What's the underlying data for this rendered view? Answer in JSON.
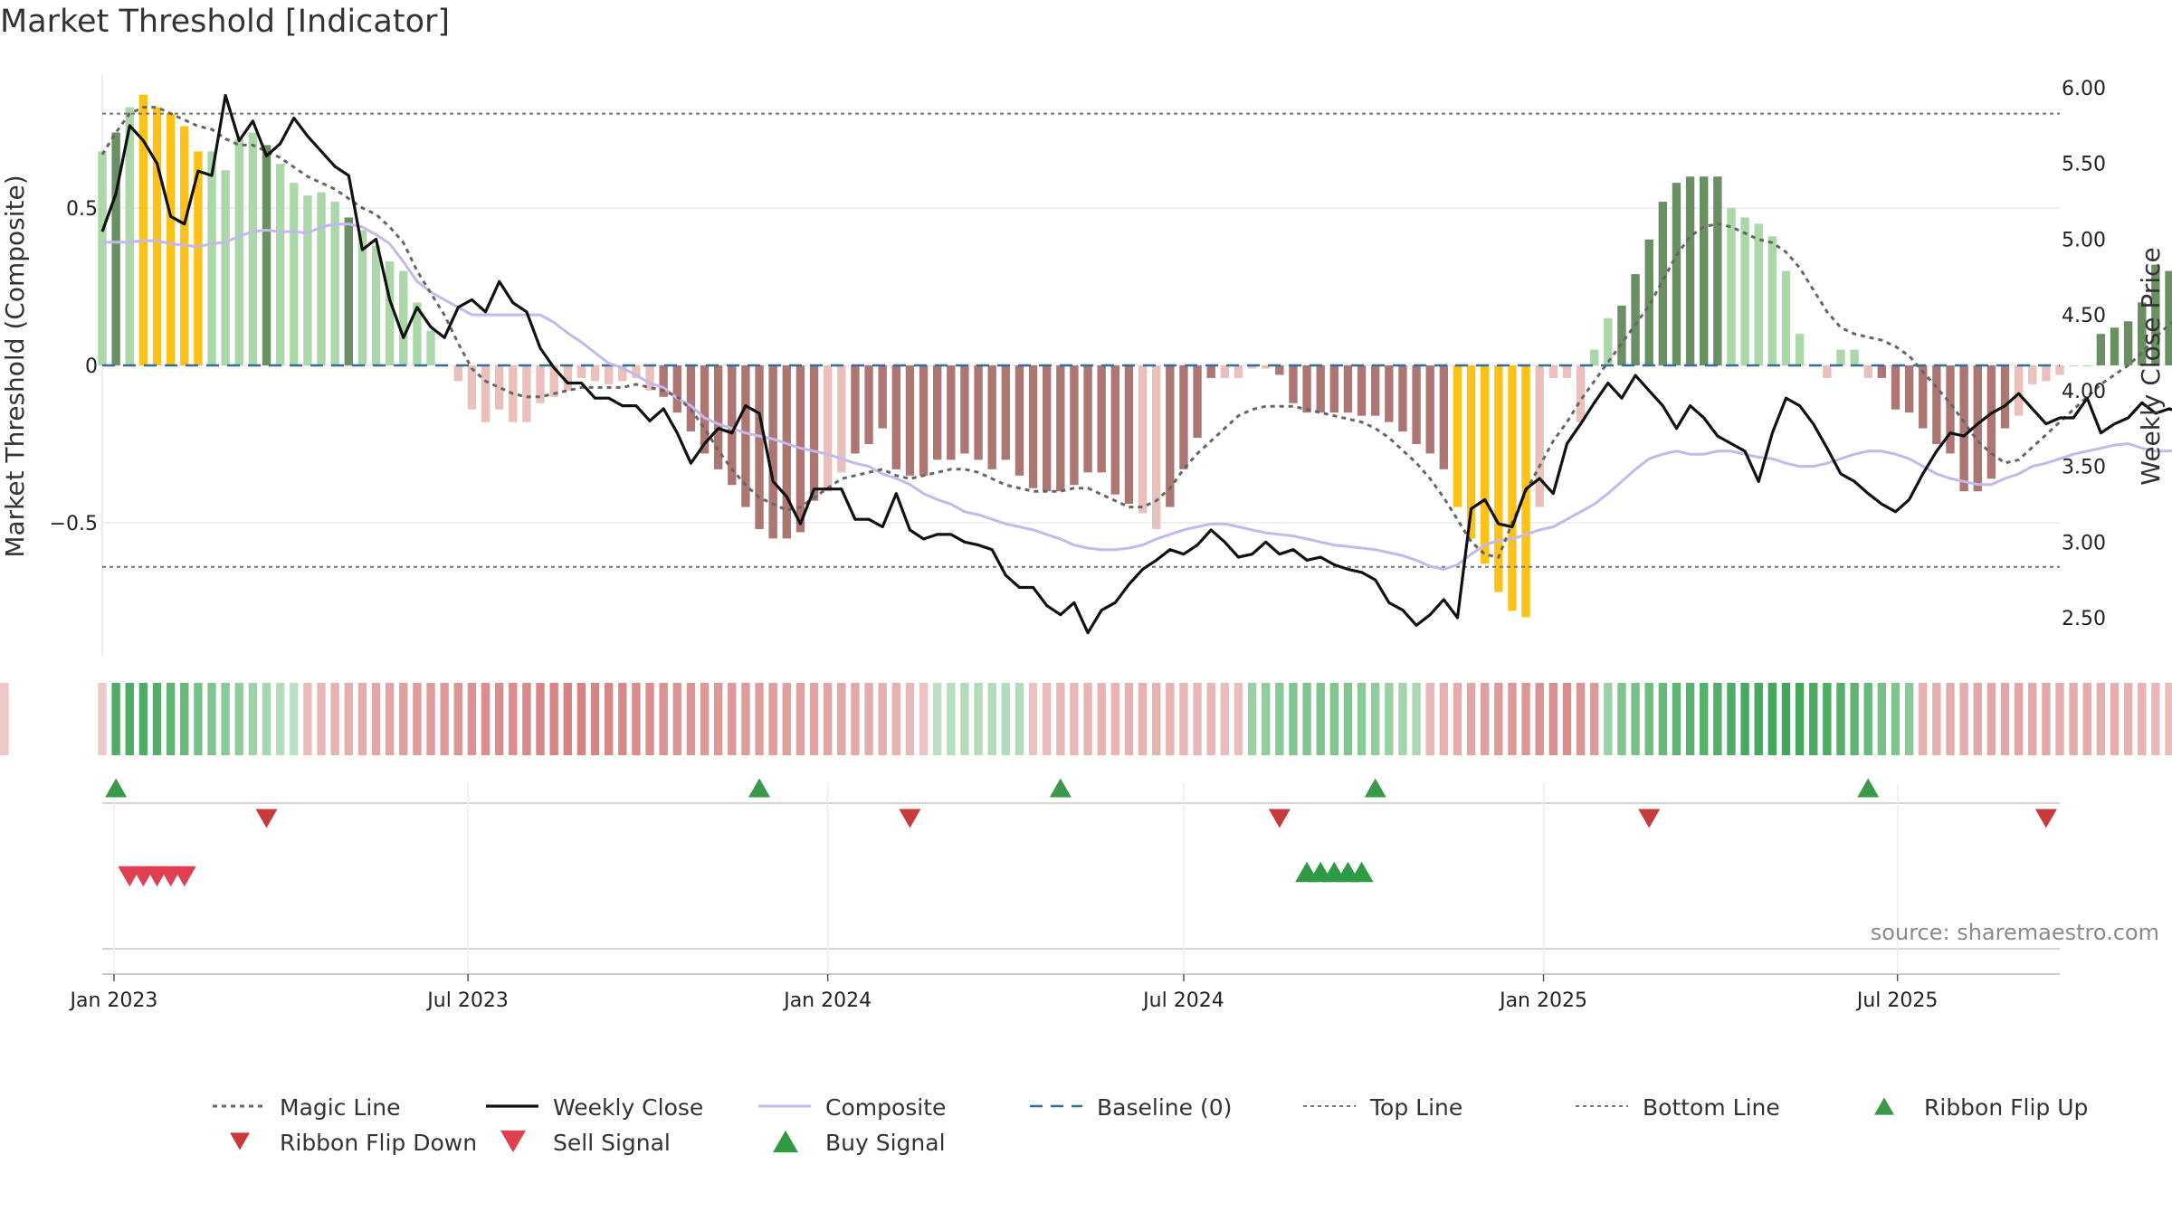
{
  "title": "Market Threshold [Indicator]",
  "source": "source: sharemaestro.com",
  "colors": {
    "strong_pos": "#6a8f62",
    "weak_pos": "#acd8a9",
    "strong_neg": "#ac7773",
    "weak_neg": "#e9c0bb",
    "extreme": "#fdc219",
    "magic_line": "#666666",
    "weekly_close": "#111111",
    "composite": "#c4b8ec",
    "baseline": "#2f6f9a",
    "guides": "#777777",
    "flip_up": "#3a9a4a",
    "flip_down": "#c93a3a",
    "sell": "#e04050",
    "buy": "#2f9a44"
  },
  "chart_data": {
    "type": "bar+line",
    "ylabel_left": "Market Threshold (Composite)",
    "ylabel_right": "Weekly Close Price",
    "ylim_left": [
      -0.93,
      0.93
    ],
    "ylim_right": [
      2.24,
      6.2
    ],
    "yticks_left": [
      {
        "v": 0.5,
        "label": "0.5"
      },
      {
        "v": 0,
        "label": "0"
      },
      {
        "v": -0.5,
        "label": "−0.5"
      }
    ],
    "yticks_right": [
      {
        "v": 6.0,
        "label": "6.00"
      },
      {
        "v": 5.5,
        "label": "5.50"
      },
      {
        "v": 5.0,
        "label": "5.00"
      },
      {
        "v": 4.5,
        "label": "4.50"
      },
      {
        "v": 4.0,
        "label": "4.00"
      },
      {
        "v": 3.5,
        "label": "3.50"
      },
      {
        "v": 3.0,
        "label": "3.00"
      },
      {
        "v": 2.5,
        "label": "2.50"
      }
    ],
    "top_line": 0.8,
    "bottom_line": -0.64,
    "x_start": "2022-12-26",
    "x_end": "2025-09-22",
    "x_ticks": [
      {
        "date": "2023-01-01",
        "label": "Jan 2023"
      },
      {
        "date": "2023-07-01",
        "label": "Jul 2023"
      },
      {
        "date": "2024-01-01",
        "label": "Jan 2024"
      },
      {
        "date": "2024-07-01",
        "label": "Jul 2024"
      },
      {
        "date": "2025-01-01",
        "label": "Jan 2025"
      },
      {
        "date": "2025-07-01",
        "label": "Jul 2025"
      }
    ],
    "composite_bars": {
      "start_date": "2022-12-26",
      "step_days": 7,
      "values": [
        0.68,
        0.74,
        0.82,
        0.86,
        0.82,
        0.8,
        0.76,
        0.68,
        0.68,
        0.62,
        0.72,
        0.74,
        0.7,
        0.64,
        0.58,
        0.54,
        0.55,
        0.52,
        0.47,
        0.43,
        0.38,
        0.33,
        0.3,
        0.2,
        0.11,
        0.0,
        -0.05,
        -0.14,
        -0.18,
        -0.14,
        -0.18,
        -0.18,
        -0.12,
        -0.1,
        -0.08,
        -0.04,
        -0.05,
        -0.06,
        -0.05,
        -0.04,
        -0.08,
        -0.1,
        -0.15,
        -0.21,
        -0.28,
        -0.33,
        -0.38,
        -0.45,
        -0.52,
        -0.55,
        -0.55,
        -0.53,
        -0.43,
        -0.4,
        -0.34,
        -0.28,
        -0.25,
        -0.2,
        -0.33,
        -0.35,
        -0.35,
        -0.3,
        -0.3,
        -0.28,
        -0.3,
        -0.33,
        -0.3,
        -0.35,
        -0.39,
        -0.4,
        -0.4,
        -0.38,
        -0.34,
        -0.34,
        -0.41,
        -0.44,
        -0.47,
        -0.52,
        -0.45,
        -0.33,
        -0.23,
        -0.04,
        -0.04,
        -0.04,
        -0.01,
        -0.01,
        -0.03,
        -0.12,
        -0.15,
        -0.15,
        -0.15,
        -0.15,
        -0.16,
        -0.16,
        -0.18,
        -0.21,
        -0.25,
        -0.28,
        -0.33,
        -0.45,
        -0.55,
        -0.63,
        -0.72,
        -0.78,
        -0.8,
        -0.45,
        -0.04,
        -0.04,
        -0.18,
        0.05,
        0.15,
        0.19,
        0.29,
        0.4,
        0.52,
        0.58,
        0.6,
        0.6,
        0.6,
        0.5,
        0.47,
        0.45,
        0.41,
        0.3,
        0.1,
        0.0,
        -0.04,
        0.05,
        0.05,
        -0.04,
        -0.04,
        -0.14,
        -0.15,
        -0.2,
        -0.25,
        -0.28,
        -0.4,
        -0.4,
        -0.36,
        -0.2,
        -0.16,
        -0.06,
        -0.05,
        -0.03,
        0.0,
        0.0,
        0.1,
        0.12,
        0.14,
        0.2,
        0.32,
        0.3,
        0.25,
        0.23,
        0.19,
        0.18,
        0.19,
        0.1,
        0.06,
        0.04,
        0.06
      ],
      "strong_indices": [
        1,
        12,
        18,
        41,
        42,
        43,
        44,
        45,
        46,
        47,
        48,
        49,
        50,
        51,
        52,
        55,
        56,
        57,
        58,
        59,
        60,
        61,
        62,
        63,
        64,
        65,
        66,
        67,
        68,
        69,
        70,
        71,
        72,
        73,
        74,
        75,
        78,
        79,
        80,
        81,
        86,
        87,
        88,
        89,
        90,
        91,
        92,
        93,
        94,
        95,
        96,
        97,
        98,
        99,
        100,
        111,
        112,
        113,
        114,
        115,
        116,
        117,
        118,
        130,
        131,
        132,
        133,
        134,
        135,
        136,
        137,
        138,
        139,
        146,
        147,
        148,
        149,
        150,
        151,
        152,
        155,
        156,
        157,
        162
      ],
      "extreme_indices": [
        3,
        4,
        5,
        6,
        7,
        99,
        100,
        101,
        102,
        103,
        104
      ]
    },
    "series": [
      {
        "name": "Magic Line",
        "axis": "left",
        "values": [
          0.67,
          0.74,
          0.8,
          0.82,
          0.82,
          0.8,
          0.78,
          0.76,
          0.75,
          0.72,
          0.7,
          0.7,
          0.68,
          0.66,
          0.63,
          0.6,
          0.58,
          0.56,
          0.53,
          0.5,
          0.48,
          0.44,
          0.39,
          0.3,
          0.23,
          0.16,
          0.07,
          -0.01,
          -0.05,
          -0.07,
          -0.09,
          -0.1,
          -0.1,
          -0.09,
          -0.08,
          -0.07,
          -0.07,
          -0.07,
          -0.07,
          -0.06,
          -0.07,
          -0.08,
          -0.1,
          -0.14,
          -0.2,
          -0.27,
          -0.33,
          -0.38,
          -0.42,
          -0.44,
          -0.46,
          -0.45,
          -0.42,
          -0.39,
          -0.36,
          -0.35,
          -0.34,
          -0.33,
          -0.35,
          -0.36,
          -0.35,
          -0.34,
          -0.33,
          -0.33,
          -0.34,
          -0.36,
          -0.38,
          -0.39,
          -0.4,
          -0.4,
          -0.4,
          -0.39,
          -0.39,
          -0.41,
          -0.43,
          -0.45,
          -0.45,
          -0.43,
          -0.39,
          -0.33,
          -0.28,
          -0.24,
          -0.2,
          -0.16,
          -0.14,
          -0.13,
          -0.13,
          -0.13,
          -0.14,
          -0.15,
          -0.16,
          -0.17,
          -0.18,
          -0.2,
          -0.23,
          -0.27,
          -0.31,
          -0.36,
          -0.42,
          -0.49,
          -0.56,
          -0.6,
          -0.61,
          -0.5,
          -0.4,
          -0.32,
          -0.24,
          -0.18,
          -0.11,
          -0.05,
          0.01,
          0.07,
          0.13,
          0.19,
          0.27,
          0.35,
          0.41,
          0.44,
          0.45,
          0.44,
          0.42,
          0.4,
          0.39,
          0.36,
          0.31,
          0.24,
          0.17,
          0.12,
          0.1,
          0.09,
          0.08,
          0.06,
          0.03,
          -0.02,
          -0.07,
          -0.12,
          -0.18,
          -0.24,
          -0.28,
          -0.31,
          -0.3,
          -0.26,
          -0.22,
          -0.18,
          -0.14,
          -0.1,
          -0.06,
          -0.03,
          0.0,
          0.04,
          0.09,
          0.13,
          0.16,
          0.18,
          0.18,
          0.18,
          0.16,
          0.14,
          0.12,
          0.1,
          0.1
        ]
      },
      {
        "name": "Weekly Close",
        "axis": "right",
        "values": [
          5.05,
          5.3,
          5.75,
          5.65,
          5.5,
          5.15,
          5.1,
          5.45,
          5.42,
          5.95,
          5.65,
          5.78,
          5.55,
          5.63,
          5.8,
          5.68,
          5.58,
          5.48,
          5.42,
          4.93,
          5.0,
          4.6,
          4.35,
          4.55,
          4.42,
          4.35,
          4.55,
          4.6,
          4.52,
          4.72,
          4.58,
          4.52,
          4.28,
          4.15,
          4.05,
          4.05,
          3.95,
          3.95,
          3.9,
          3.9,
          3.8,
          3.88,
          3.72,
          3.52,
          3.65,
          3.75,
          3.72,
          3.9,
          3.85,
          3.4,
          3.3,
          3.12,
          3.35,
          3.35,
          3.35,
          3.15,
          3.15,
          3.1,
          3.32,
          3.08,
          3.02,
          3.05,
          3.05,
          3.0,
          2.98,
          2.95,
          2.78,
          2.7,
          2.7,
          2.58,
          2.52,
          2.6,
          2.4,
          2.55,
          2.6,
          2.72,
          2.82,
          2.88,
          2.95,
          2.92,
          2.98,
          3.08,
          3.0,
          2.9,
          2.92,
          3.0,
          2.92,
          2.95,
          2.88,
          2.9,
          2.85,
          2.82,
          2.8,
          2.75,
          2.6,
          2.55,
          2.45,
          2.52,
          2.62,
          2.5,
          3.22,
          3.28,
          3.12,
          3.1,
          3.35,
          3.42,
          3.32,
          3.65,
          3.78,
          3.92,
          4.05,
          3.95,
          4.1,
          4.0,
          3.9,
          3.75,
          3.9,
          3.82,
          3.7,
          3.65,
          3.6,
          3.4,
          3.72,
          3.95,
          3.9,
          3.78,
          3.62,
          3.45,
          3.4,
          3.32,
          3.25,
          3.2,
          3.28,
          3.45,
          3.6,
          3.72,
          3.7,
          3.78,
          3.85,
          3.9,
          3.98,
          3.88,
          3.78,
          3.82,
          3.82,
          3.95,
          3.72,
          3.78,
          3.82,
          3.92,
          3.85,
          3.88,
          3.85,
          3.82,
          3.92,
          4.0
        ]
      },
      {
        "name": "Composite",
        "axis": "right",
        "values": [
          4.98,
          4.98,
          4.98,
          4.99,
          4.99,
          4.97,
          4.96,
          4.95,
          4.97,
          4.98,
          5.02,
          5.05,
          5.06,
          5.05,
          5.05,
          5.04,
          5.08,
          5.1,
          5.1,
          5.08,
          5.03,
          4.97,
          4.85,
          4.72,
          4.65,
          4.6,
          4.55,
          4.5,
          4.5,
          4.5,
          4.5,
          4.5,
          4.5,
          4.45,
          4.38,
          4.32,
          4.25,
          4.18,
          4.15,
          4.1,
          4.05,
          4.02,
          3.95,
          3.9,
          3.82,
          3.78,
          3.75,
          3.72,
          3.7,
          3.68,
          3.65,
          3.62,
          3.6,
          3.58,
          3.55,
          3.52,
          3.5,
          3.45,
          3.42,
          3.38,
          3.32,
          3.28,
          3.25,
          3.2,
          3.18,
          3.15,
          3.12,
          3.1,
          3.08,
          3.05,
          3.02,
          2.98,
          2.96,
          2.95,
          2.95,
          2.96,
          2.98,
          3.02,
          3.05,
          3.08,
          3.1,
          3.12,
          3.12,
          3.1,
          3.08,
          3.06,
          3.05,
          3.04,
          3.02,
          3.0,
          2.98,
          2.97,
          2.96,
          2.95,
          2.93,
          2.91,
          2.88,
          2.84,
          2.82,
          2.85,
          2.92,
          2.98,
          3.01,
          3.02,
          3.05,
          3.08,
          3.1,
          3.15,
          3.2,
          3.25,
          3.32,
          3.4,
          3.48,
          3.55,
          3.58,
          3.6,
          3.58,
          3.58,
          3.6,
          3.6,
          3.58,
          3.56,
          3.55,
          3.52,
          3.5,
          3.5,
          3.52,
          3.55,
          3.58,
          3.6,
          3.6,
          3.58,
          3.55,
          3.5,
          3.45,
          3.42,
          3.4,
          3.38,
          3.38,
          3.42,
          3.45,
          3.5,
          3.52,
          3.55,
          3.58,
          3.6,
          3.62,
          3.64,
          3.65,
          3.62,
          3.6,
          3.6,
          3.62,
          3.64,
          3.66,
          3.68,
          3.7,
          3.7,
          3.72,
          3.74
        ]
      }
    ],
    "ribbon": {
      "label": "",
      "values": [
        -0.2,
        0.85,
        0.85,
        0.85,
        0.82,
        0.75,
        0.7,
        0.6,
        0.55,
        0.5,
        0.45,
        0.38,
        0.32,
        0.25,
        0.2,
        -0.3,
        -0.35,
        -0.38,
        -0.42,
        -0.45,
        -0.5,
        -0.52,
        -0.55,
        -0.58,
        -0.6,
        -0.62,
        -0.65,
        -0.68,
        -0.7,
        -0.72,
        -0.72,
        -0.75,
        -0.78,
        -0.8,
        -0.82,
        -0.82,
        -0.8,
        -0.78,
        -0.75,
        -0.72,
        -0.7,
        -0.68,
        -0.65,
        -0.65,
        -0.62,
        -0.62,
        -0.62,
        -0.6,
        -0.58,
        -0.58,
        -0.55,
        -0.55,
        -0.52,
        -0.52,
        -0.5,
        -0.48,
        -0.45,
        -0.42,
        -0.4,
        -0.35,
        -0.25,
        0.2,
        0.22,
        0.25,
        0.25,
        0.25,
        0.25,
        0.25,
        -0.25,
        -0.3,
        -0.35,
        -0.35,
        -0.38,
        -0.38,
        -0.38,
        -0.4,
        -0.4,
        -0.4,
        -0.38,
        -0.35,
        -0.35,
        -0.35,
        -0.3,
        -0.3,
        0.4,
        0.45,
        0.5,
        0.55,
        0.55,
        0.55,
        0.55,
        0.55,
        0.5,
        0.45,
        0.4,
        0.35,
        0.3,
        -0.35,
        -0.4,
        -0.45,
        -0.5,
        -0.55,
        -0.6,
        -0.62,
        -0.65,
        -0.68,
        -0.7,
        -0.72,
        -0.65,
        -0.6,
        0.4,
        0.55,
        0.6,
        0.65,
        0.7,
        0.75,
        0.78,
        0.8,
        0.82,
        0.85,
        0.88,
        0.9,
        0.92,
        0.92,
        0.9,
        0.88,
        0.85,
        0.8,
        0.75,
        0.7,
        0.6,
        0.55,
        0.5,
        -0.4,
        -0.42,
        -0.45,
        -0.45,
        -0.48,
        -0.5,
        -0.5,
        -0.5,
        -0.48,
        -0.48,
        -0.45,
        -0.45,
        -0.45,
        -0.42,
        -0.42,
        -0.4,
        -0.38,
        -0.35,
        -0.3,
        0.4,
        0.45,
        0.45,
        0.5,
        0.5,
        0.55,
        0.55,
        0.55,
        0.5,
        0.5,
        0.5,
        0.5,
        0.45,
        0.45,
        -0.2
      ]
    },
    "signals": {
      "flip_up": [
        "2023-01-02",
        "2023-11-27",
        "2024-04-29",
        "2024-10-07",
        "2025-06-16"
      ],
      "flip_down": [
        "2023-03-20",
        "2024-02-12",
        "2024-08-19",
        "2025-02-24",
        "2025-09-15"
      ],
      "sell": [
        "2023-01-09",
        "2023-01-16",
        "2023-01-23",
        "2023-01-30",
        "2023-02-06"
      ],
      "buy": [
        "2024-09-02",
        "2024-09-09",
        "2024-09-16",
        "2024-09-23",
        "2024-09-30"
      ]
    },
    "legend": [
      {
        "key": "magic",
        "label": "Magic Line",
        "style": "dotted"
      },
      {
        "key": "close",
        "label": "Weekly Close",
        "style": "solid"
      },
      {
        "key": "composite",
        "label": "Composite",
        "style": "solid-light"
      },
      {
        "key": "baseline",
        "label": "Baseline (0)",
        "style": "dashed"
      },
      {
        "key": "top",
        "label": "Top Line",
        "style": "dotted-light"
      },
      {
        "key": "bottom",
        "label": "Bottom Line",
        "style": "dotted-light"
      },
      {
        "key": "flip_up",
        "label": "Ribbon Flip Up",
        "style": "triangle-up"
      },
      {
        "key": "flip_down",
        "label": "Ribbon Flip Down",
        "style": "triangle-down"
      },
      {
        "key": "sell",
        "label": "Sell Signal",
        "style": "triangle-down-big"
      },
      {
        "key": "buy",
        "label": "Buy Signal",
        "style": "triangle-up-big"
      }
    ]
  }
}
